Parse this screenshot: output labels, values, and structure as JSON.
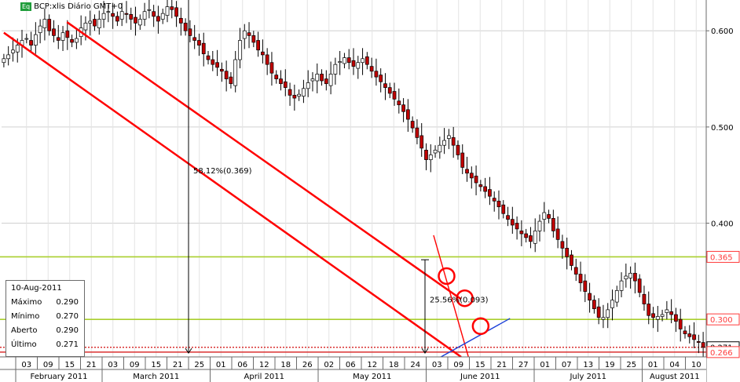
{
  "chart_data": {
    "type": "candlestick",
    "instrument": "BCP:xlis Diário GMT+0",
    "instrument_badge": "Eq",
    "ylim": [
      0.261,
      0.632
    ],
    "y_ticks": [
      0.6,
      0.5,
      0.4
    ],
    "y_tick_labels": [
      "0.600",
      "0.500",
      "0.400"
    ],
    "price_markers": [
      {
        "value": 0.365,
        "label": "0.365",
        "color": "#ff3a3a"
      },
      {
        "value": 0.3,
        "label": "0.300",
        "color": "#ff3a3a"
      },
      {
        "value": 0.271,
        "label": "0.271",
        "color": "#000000"
      },
      {
        "value": 0.266,
        "label": "0.266",
        "color": "#ff3a3a"
      }
    ],
    "horizontal_lines": [
      {
        "value": 0.365,
        "color": "#a9cf2e"
      },
      {
        "value": 0.3,
        "color": "#a9cf2e"
      },
      {
        "value": 0.271,
        "color": "#d93030",
        "dotted": true
      },
      {
        "value": 0.266,
        "color": "#d93030"
      }
    ],
    "x_day_ticks": [
      "03",
      "09",
      "15",
      "21",
      "03",
      "09",
      "15",
      "21",
      "25",
      "01",
      "06",
      "12",
      "18",
      "26",
      "02",
      "06",
      "12",
      "18",
      "24",
      "03",
      "09",
      "15",
      "21",
      "27",
      "01",
      "07",
      "13",
      "19",
      "25",
      "01",
      "04",
      "10"
    ],
    "x_month_labels": [
      "February 2011",
      "March 2011",
      "April 2011",
      "May 2011",
      "June 2011",
      "July 2011",
      "August 2011"
    ],
    "closes": [
      0.571,
      0.575,
      0.58,
      0.585,
      0.59,
      0.592,
      0.585,
      0.596,
      0.605,
      0.612,
      0.6,
      0.595,
      0.59,
      0.598,
      0.593,
      0.588,
      0.592,
      0.603,
      0.608,
      0.61,
      0.605,
      0.612,
      0.618,
      0.62,
      0.615,
      0.61,
      0.62,
      0.617,
      0.612,
      0.608,
      0.612,
      0.62,
      0.622,
      0.615,
      0.61,
      0.618,
      0.625,
      0.622,
      0.615,
      0.608,
      0.6,
      0.595,
      0.59,
      0.585,
      0.576,
      0.57,
      0.565,
      0.562,
      0.558,
      0.55,
      0.545,
      0.57,
      0.59,
      0.6,
      0.595,
      0.588,
      0.58,
      0.575,
      0.565,
      0.556,
      0.55,
      0.545,
      0.541,
      0.533,
      0.53,
      0.534,
      0.54,
      0.546,
      0.55,
      0.555,
      0.548,
      0.545,
      0.555,
      0.565,
      0.568,
      0.572,
      0.567,
      0.563,
      0.567,
      0.571,
      0.565,
      0.558,
      0.552,
      0.547,
      0.541,
      0.535,
      0.529,
      0.523,
      0.516,
      0.508,
      0.499,
      0.489,
      0.478,
      0.466,
      0.471,
      0.476,
      0.481,
      0.486,
      0.491,
      0.481,
      0.471,
      0.458,
      0.452,
      0.447,
      0.442,
      0.438,
      0.433,
      0.428,
      0.423,
      0.417,
      0.41,
      0.404,
      0.398,
      0.394,
      0.389,
      0.385,
      0.381,
      0.392,
      0.402,
      0.411,
      0.405,
      0.392,
      0.383,
      0.374,
      0.365,
      0.356,
      0.347,
      0.338,
      0.329,
      0.32,
      0.311,
      0.302,
      0.302,
      0.31,
      0.32,
      0.33,
      0.34,
      0.345,
      0.348,
      0.34,
      0.328,
      0.316,
      0.304,
      0.302,
      0.303,
      0.305,
      0.31,
      0.305,
      0.298,
      0.29,
      0.285,
      0.282,
      0.279,
      0.276,
      0.271
    ],
    "channel_lines": [
      {
        "from": [
          0.0,
          0.598
        ],
        "to": [
          100.7,
          0.261
        ]
      },
      {
        "from": [
          13.9,
          0.609
        ],
        "to": [
          100.7,
          0.321
        ]
      }
    ],
    "outer_line": {
      "from": [
        50.0,
        0.5
      ],
      "to": [
        100.0,
        0.33
      ]
    },
    "blue_line": {
      "from": [
        100.0,
        0.266
      ],
      "to": [
        104.2,
        0.301
      ]
    },
    "circles": [
      {
        "x": 97.5,
        "y": 0.345
      },
      {
        "x": 101.5,
        "y": 0.322
      },
      {
        "x": 105.0,
        "y": 0.293
      }
    ],
    "annotations": [
      {
        "text": "58.12%(0.369)",
        "from": 0.632,
        "to": 0.265
      },
      {
        "text": "25.56%(0.093)",
        "from": 0.362,
        "to": 0.265
      }
    ],
    "ohlc_box": {
      "date": "10-Aug-2011",
      "rows": [
        {
          "label": "Máximo",
          "value": "0.290"
        },
        {
          "label": "Mínimo",
          "value": "0.270"
        },
        {
          "label": "Aberto",
          "value": "0.290"
        },
        {
          "label": "Último",
          "value": "0.271"
        }
      ]
    },
    "colors": {
      "up": "#ffffff",
      "down": "#c00000",
      "channel": "#ff0000",
      "grid": "#d0d0d0",
      "level": "#a9cf2e"
    }
  }
}
